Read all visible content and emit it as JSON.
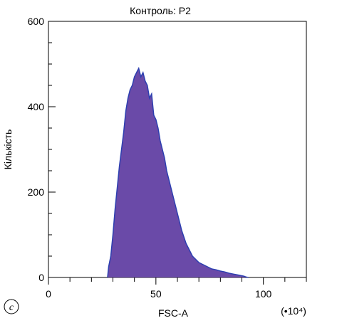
{
  "chart_data": {
    "type": "area",
    "title": "Контроль: P2",
    "xlabel": "FSC-A",
    "ylabel": "Кількість",
    "x_multiplier": "(•10⁴)",
    "panel_label": "c",
    "xlim": [
      0,
      120
    ],
    "ylim": [
      0,
      600
    ],
    "x_ticks": [
      0,
      50,
      100
    ],
    "y_ticks": [
      0,
      200,
      400,
      600
    ],
    "grid": false,
    "fill_color": "#6a4aa8",
    "line_color": "#2d3fb0",
    "series": [
      {
        "x": [
          27.5,
          28,
          29,
          30,
          31,
          32,
          33,
          34,
          35,
          36,
          37,
          38,
          39,
          40,
          41,
          42,
          43,
          44,
          45,
          46,
          47,
          48,
          49,
          50,
          51,
          52,
          53,
          54,
          55,
          56,
          57,
          58,
          59,
          60,
          61,
          62,
          63,
          64,
          65,
          66,
          67,
          68,
          69,
          70,
          72,
          74,
          76,
          78,
          80,
          82,
          84,
          86,
          88,
          90,
          91,
          92,
          93
        ],
        "values": [
          0,
          25,
          50,
          100,
          160,
          210,
          260,
          300,
          340,
          390,
          420,
          440,
          450,
          470,
          480,
          490,
          470,
          480,
          460,
          450,
          420,
          430,
          380,
          370,
          350,
          320,
          300,
          280,
          250,
          230,
          210,
          190,
          170,
          150,
          130,
          110,
          95,
          80,
          70,
          60,
          50,
          45,
          40,
          35,
          30,
          25,
          20,
          18,
          15,
          13,
          10,
          8,
          6,
          4,
          3,
          1,
          0
        ]
      }
    ]
  }
}
